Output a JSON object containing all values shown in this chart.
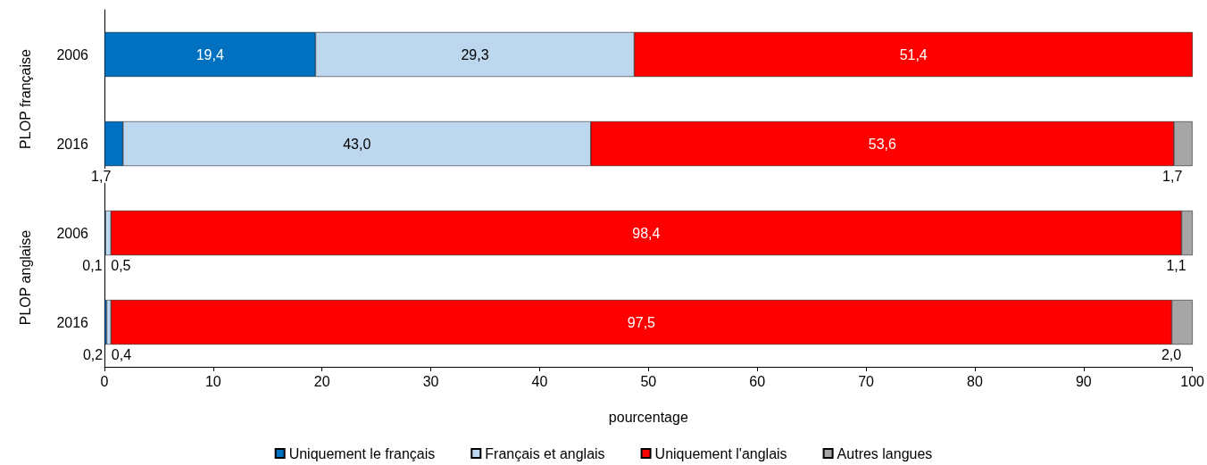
{
  "chart_data": {
    "type": "bar",
    "orientation": "horizontal",
    "stacked": true,
    "xlabel": "pourcentage",
    "categories": [
      "2006",
      "2016",
      "2006",
      "2016"
    ],
    "series": [
      {
        "name": "Uniquement le français",
        "color": "#0070c0",
        "values": [
          19.4,
          1.7,
          0.1,
          0.2
        ],
        "value_labels": [
          "19,4",
          "1,7",
          "0,1",
          "0,2"
        ]
      },
      {
        "name": "Français et anglais",
        "color": "#bdd7ee",
        "values": [
          29.3,
          43.0,
          0.5,
          0.4
        ],
        "value_labels": [
          "29,3",
          "43,0",
          "0,5",
          "0,4"
        ]
      },
      {
        "name": "Uniquement l'anglais",
        "color": "#ff0000",
        "values": [
          51.4,
          53.6,
          98.4,
          97.5
        ],
        "value_labels": [
          "51,4",
          "53,6",
          "98,4",
          "97,5"
        ]
      },
      {
        "name": "Autres langues",
        "color": "#a6a6a6",
        "values": [
          null,
          1.7,
          1.1,
          2.0
        ],
        "value_labels": [
          null,
          "1,7",
          "1,1",
          "2,0"
        ]
      }
    ],
    "xlim": [
      0,
      100
    ],
    "xticks": [
      0,
      10,
      20,
      30,
      40,
      50,
      60,
      70,
      80,
      90,
      100
    ],
    "annotations": [
      "PLOP française",
      "PLOP anglaise"
    ],
    "legend": "bottom",
    "grid": false
  }
}
